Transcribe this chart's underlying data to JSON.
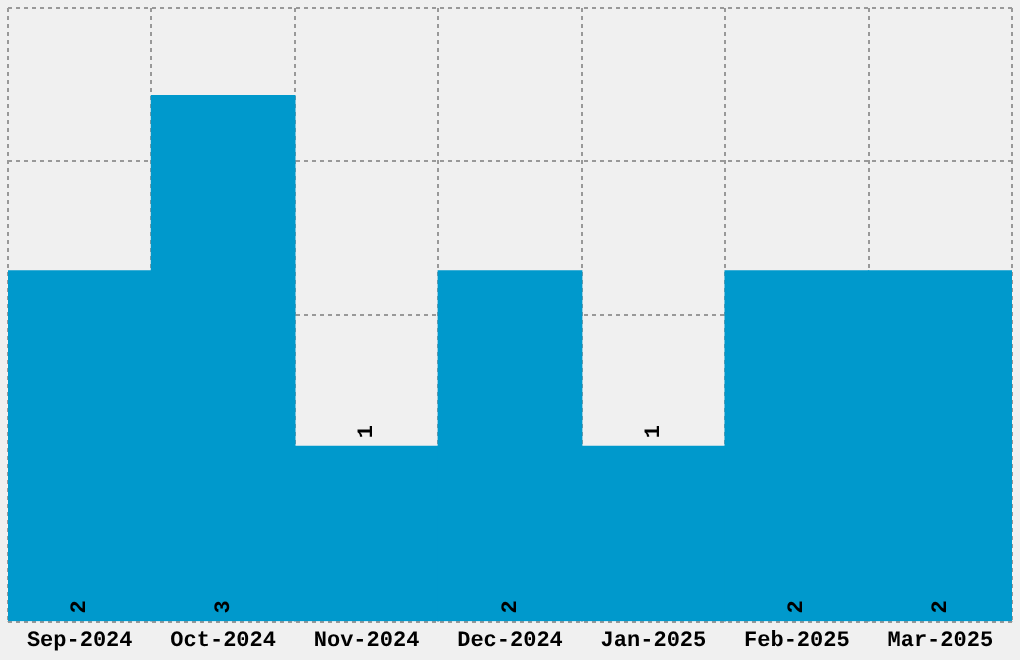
{
  "chart_data": {
    "type": "bar",
    "categories": [
      "Sep-2024",
      "Oct-2024",
      "Nov-2024",
      "Dec-2024",
      "Jan-2025",
      "Feb-2025",
      "Mar-2025"
    ],
    "values": [
      2,
      3,
      1,
      2,
      1,
      2,
      2
    ],
    "color": "#0099cc",
    "tick_labels": "x",
    "grid": true,
    "data_labels": true,
    "legend": false
  }
}
